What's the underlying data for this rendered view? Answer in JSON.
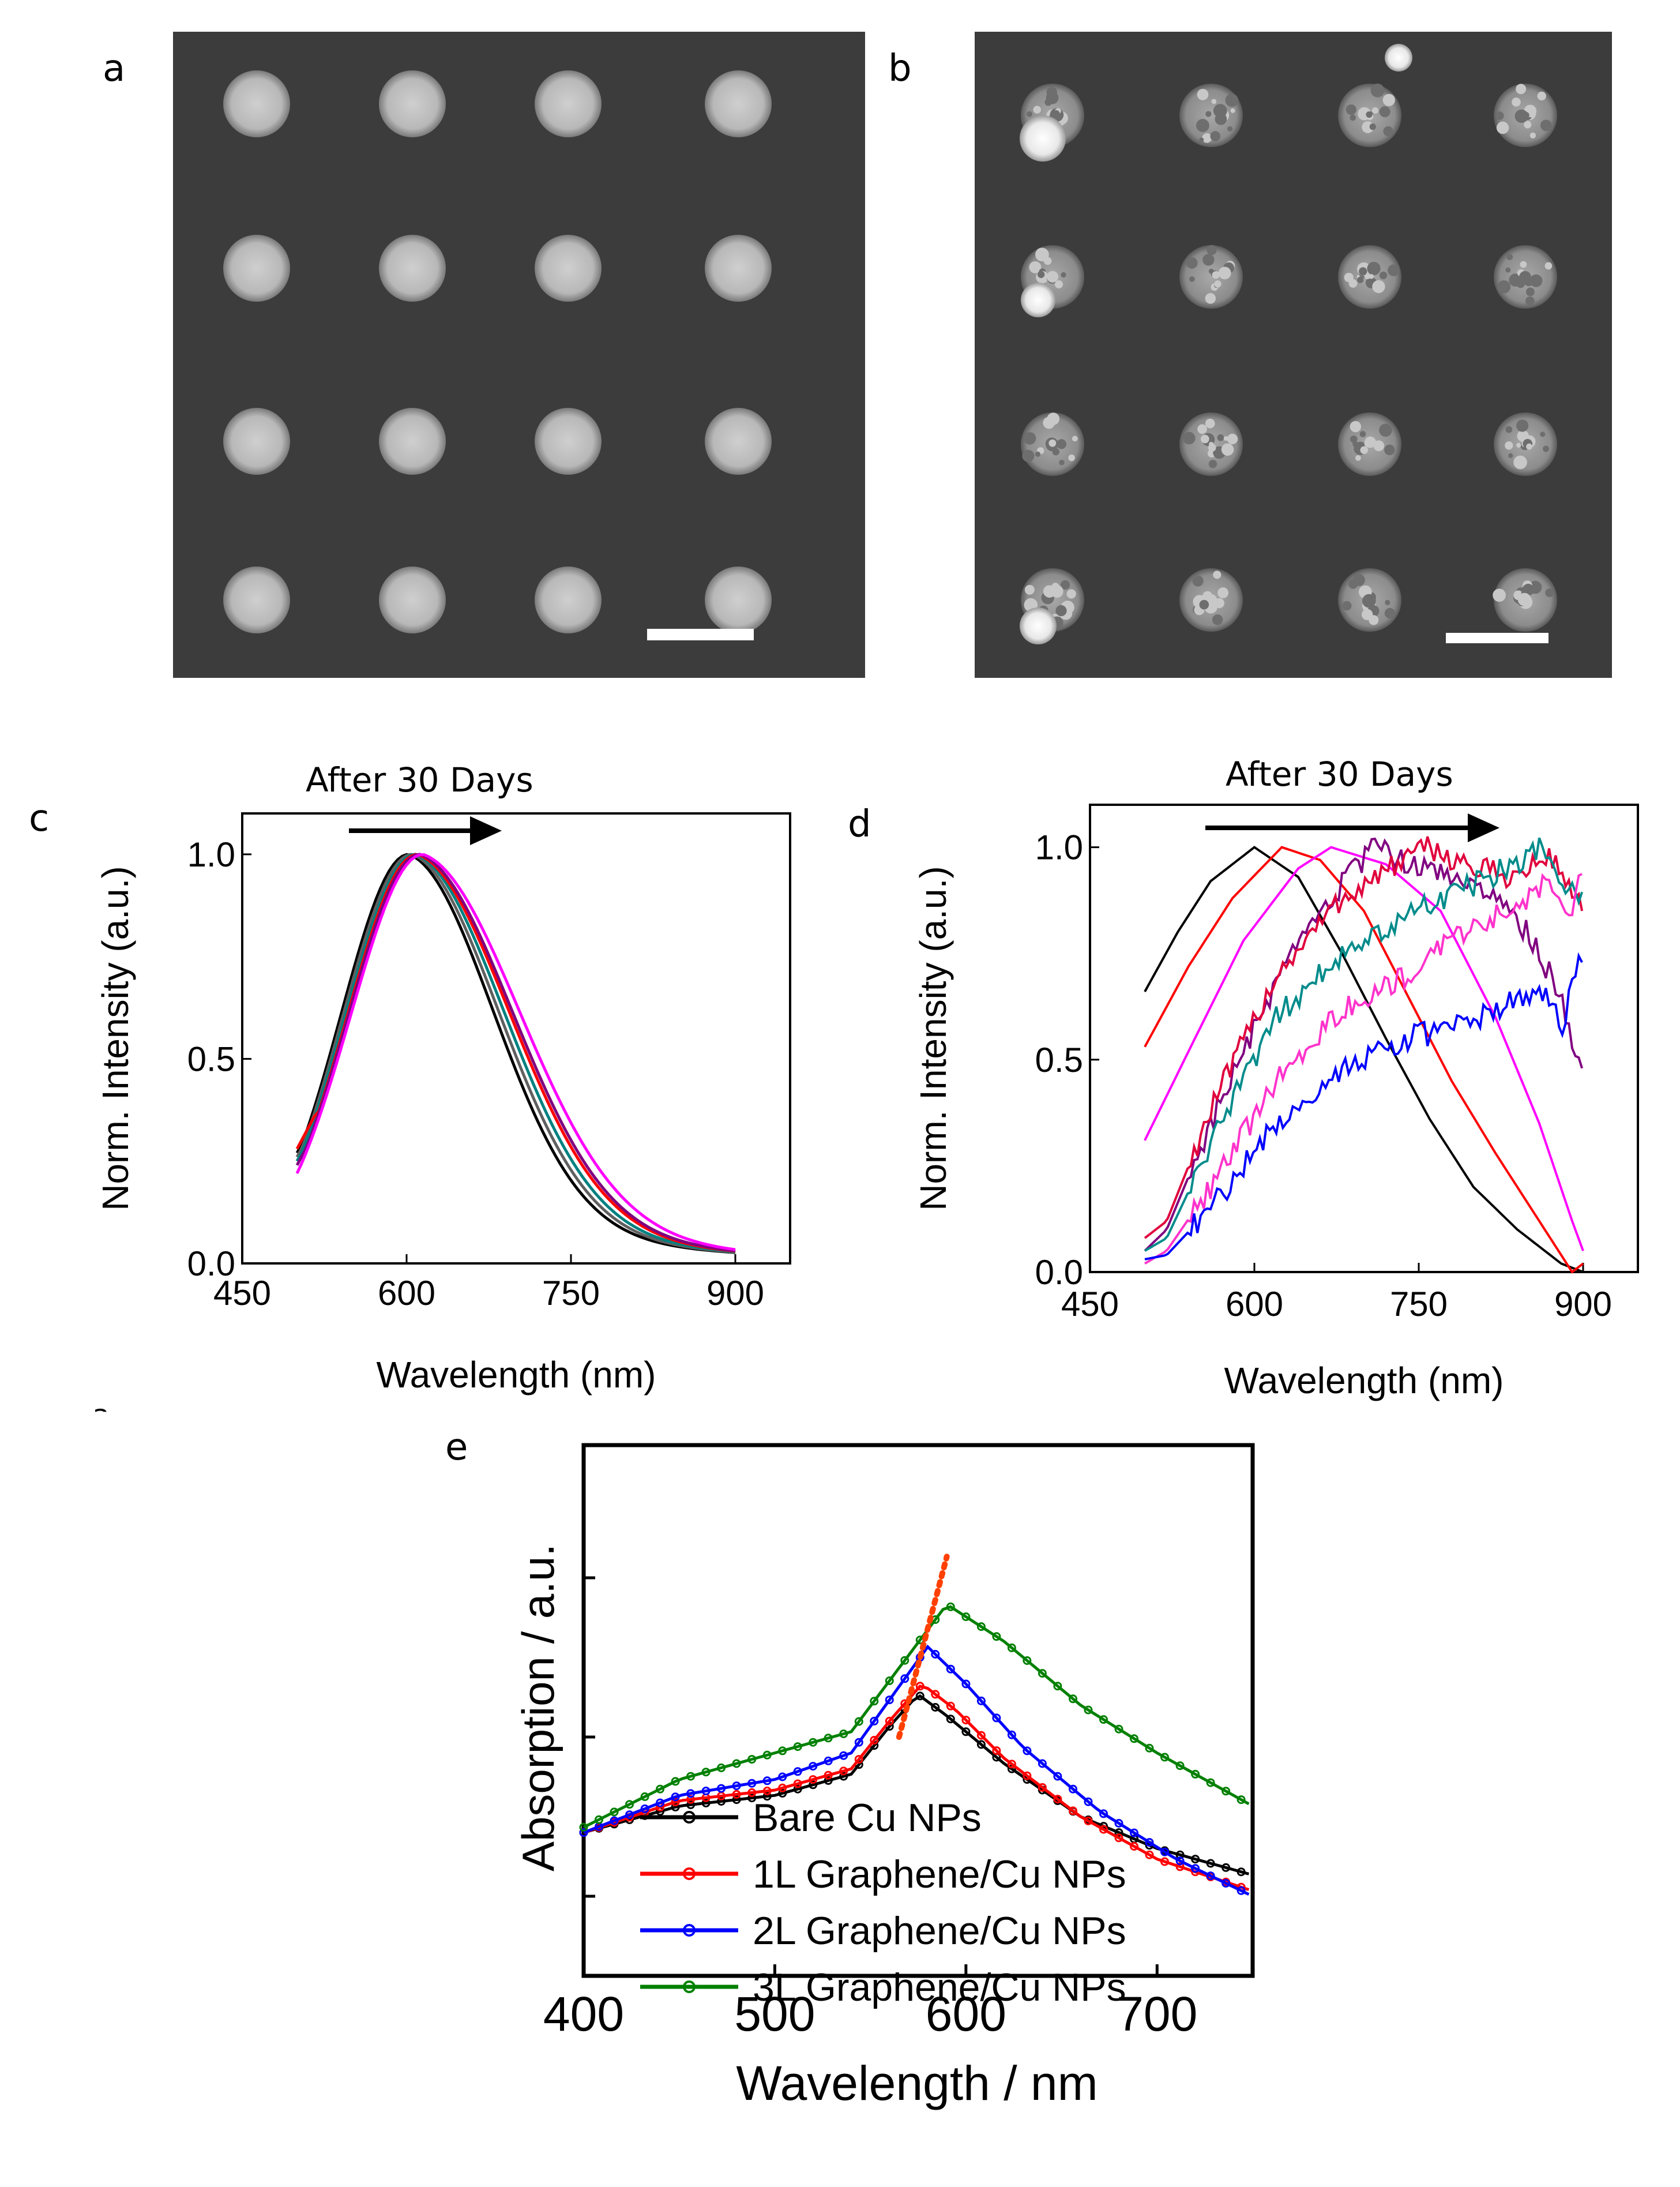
{
  "figure": {
    "panels": {
      "a": {
        "letter": "a"
      },
      "b": {
        "letter": "b"
      },
      "c": {
        "letter": "c",
        "arrow_caption": "After 30 Days"
      },
      "d": {
        "letter": "d",
        "arrow_caption": "After 30 Days"
      },
      "e": {
        "letter": "e"
      }
    },
    "stray_glyph": "a",
    "sem_images": {
      "a": {
        "grid": [
          4,
          4
        ],
        "description_scale_bar": true,
        "particle_style": "smooth"
      },
      "b": {
        "grid": [
          4,
          4
        ],
        "description_scale_bar": true,
        "particle_style": "oxidized-speckled"
      }
    }
  },
  "chart_data": [
    {
      "id": "c",
      "type": "line",
      "xlabel": "Wavelength (nm)",
      "ylabel": "Norm. Intensity (a.u.)",
      "xlim": [
        450,
        950
      ],
      "ylim": [
        0,
        1.1
      ],
      "xticks": [
        450,
        600,
        750,
        900
      ],
      "yticks": [
        0.0,
        0.5,
        1.0
      ],
      "xtick_labels": [
        "450",
        "600",
        "750",
        "900"
      ],
      "ytick_labels": [
        "0.0",
        "0.5",
        "1.0"
      ],
      "x_range": [
        500,
        900
      ],
      "series": [
        {
          "color": "#000000",
          "peak": 602,
          "widthL": 62,
          "widthR": 78,
          "start": 0.27
        },
        {
          "color": "#606060",
          "peak": 605,
          "widthL": 63,
          "widthR": 80,
          "start": 0.26
        },
        {
          "color": "#008080",
          "peak": 608,
          "widthL": 64,
          "widthR": 82,
          "start": 0.25
        },
        {
          "color": "#ff0000",
          "peak": 610,
          "widthL": 64,
          "widthR": 85,
          "start": 0.28
        },
        {
          "color": "#800080",
          "peak": 612,
          "widthL": 65,
          "widthR": 86,
          "start": 0.24
        },
        {
          "color": "#ff00ff",
          "peak": 615,
          "widthL": 66,
          "widthR": 90,
          "start": 0.22
        }
      ]
    },
    {
      "id": "d",
      "type": "line",
      "xlabel": "Wavelength (nm)",
      "ylabel": "Norm. Intensity (a.u.)",
      "xlim": [
        450,
        950
      ],
      "ylim": [
        0,
        1.1
      ],
      "xticks": [
        450,
        600,
        750,
        900
      ],
      "yticks": [
        0.0,
        0.5,
        1.0
      ],
      "xtick_labels": [
        "450",
        "600",
        "750",
        "900"
      ],
      "ytick_labels": [
        "0.0",
        "0.5",
        "1.0"
      ],
      "x_range": [
        500,
        900
      ],
      "series": [
        {
          "color": "#000000",
          "points": [
            [
              500,
              0.66
            ],
            [
              530,
              0.8
            ],
            [
              560,
              0.92
            ],
            [
              600,
              1.0
            ],
            [
              640,
              0.93
            ],
            [
              680,
              0.75
            ],
            [
              720,
              0.55
            ],
            [
              760,
              0.36
            ],
            [
              800,
              0.2
            ],
            [
              840,
              0.1
            ],
            [
              880,
              0.02
            ],
            [
              900,
              0.0
            ]
          ]
        },
        {
          "color": "#ff0000",
          "points": [
            [
              500,
              0.53
            ],
            [
              540,
              0.72
            ],
            [
              580,
              0.88
            ],
            [
              625,
              1.0
            ],
            [
              660,
              0.97
            ],
            [
              700,
              0.85
            ],
            [
              740,
              0.65
            ],
            [
              780,
              0.45
            ],
            [
              820,
              0.28
            ],
            [
              860,
              0.12
            ],
            [
              890,
              0.0
            ],
            [
              900,
              0.02
            ]
          ]
        },
        {
          "color": "#ff00ff",
          "points": [
            [
              500,
              0.31
            ],
            [
              540,
              0.52
            ],
            [
              590,
              0.78
            ],
            [
              640,
              0.95
            ],
            [
              670,
              1.0
            ],
            [
              720,
              0.96
            ],
            [
              770,
              0.85
            ],
            [
              820,
              0.6
            ],
            [
              860,
              0.35
            ],
            [
              890,
              0.12
            ],
            [
              900,
              0.05
            ]
          ]
        },
        {
          "color": "#800080",
          "points": [
            [
              500,
              0.05
            ],
            [
              520,
              0.1
            ],
            [
              560,
              0.35
            ],
            [
              620,
              0.68
            ],
            [
              670,
              0.88
            ],
            [
              710,
              1.0
            ],
            [
              750,
              0.95
            ],
            [
              800,
              0.92
            ],
            [
              850,
              0.8
            ],
            [
              880,
              0.65
            ],
            [
              890,
              0.52
            ],
            [
              900,
              0.5
            ]
          ]
        },
        {
          "color": "#e0003c",
          "points": [
            [
              500,
              0.08
            ],
            [
              520,
              0.12
            ],
            [
              560,
              0.38
            ],
            [
              620,
              0.7
            ],
            [
              680,
              0.88
            ],
            [
              730,
              0.96
            ],
            [
              760,
              1.0
            ],
            [
              800,
              0.95
            ],
            [
              840,
              0.93
            ],
            [
              870,
              0.98
            ],
            [
              890,
              0.9
            ],
            [
              900,
              0.85
            ]
          ]
        },
        {
          "color": "#008b8b",
          "points": [
            [
              500,
              0.05
            ],
            [
              520,
              0.08
            ],
            [
              560,
              0.3
            ],
            [
              620,
              0.6
            ],
            [
              680,
              0.75
            ],
            [
              740,
              0.84
            ],
            [
              790,
              0.9
            ],
            [
              830,
              0.95
            ],
            [
              860,
              1.0
            ],
            [
              880,
              0.92
            ],
            [
              900,
              0.88
            ]
          ]
        },
        {
          "color": "#ff33cc",
          "points": [
            [
              500,
              0.02
            ],
            [
              520,
              0.05
            ],
            [
              560,
              0.2
            ],
            [
              620,
              0.45
            ],
            [
              680,
              0.62
            ],
            [
              740,
              0.7
            ],
            [
              790,
              0.8
            ],
            [
              840,
              0.86
            ],
            [
              870,
              0.92
            ],
            [
              890,
              0.85
            ],
            [
              900,
              0.98
            ]
          ]
        },
        {
          "color": "#0000ff",
          "points": [
            [
              500,
              0.03
            ],
            [
              520,
              0.04
            ],
            [
              560,
              0.15
            ],
            [
              620,
              0.35
            ],
            [
              680,
              0.48
            ],
            [
              740,
              0.55
            ],
            [
              790,
              0.58
            ],
            [
              830,
              0.63
            ],
            [
              860,
              0.67
            ],
            [
              880,
              0.58
            ],
            [
              900,
              0.75
            ]
          ]
        }
      ],
      "noise_from_series_index": 3
    },
    {
      "id": "e",
      "type": "line",
      "xlabel": "Wavelength / nm",
      "ylabel": "Absorption / a.u.",
      "xlim": [
        400,
        750
      ],
      "xticks": [
        400,
        500,
        600,
        700
      ],
      "xtick_labels": [
        "400",
        "500",
        "600",
        "700"
      ],
      "ylim": [
        0,
        1.0
      ],
      "legend_placement": "lower-left",
      "series": [
        {
          "name": "Bare Cu NPs",
          "color": "#000000",
          "points": [
            [
              400,
              0.27
            ],
            [
              450,
              0.32
            ],
            [
              500,
              0.34
            ],
            [
              540,
              0.38
            ],
            [
              560,
              0.47
            ],
            [
              575,
              0.53
            ],
            [
              590,
              0.49
            ],
            [
              620,
              0.4
            ],
            [
              660,
              0.3
            ],
            [
              700,
              0.24
            ],
            [
              750,
              0.19
            ]
          ]
        },
        {
          "name": "1L Graphene/Cu NPs",
          "color": "#ff0000",
          "points": [
            [
              400,
              0.27
            ],
            [
              450,
              0.33
            ],
            [
              500,
              0.35
            ],
            [
              540,
              0.39
            ],
            [
              560,
              0.48
            ],
            [
              577,
              0.55
            ],
            [
              595,
              0.5
            ],
            [
              620,
              0.41
            ],
            [
              660,
              0.3
            ],
            [
              700,
              0.22
            ],
            [
              750,
              0.16
            ]
          ]
        },
        {
          "name": "2L Graphene/Cu NPs",
          "color": "#0000ff",
          "points": [
            [
              400,
              0.27
            ],
            [
              450,
              0.34
            ],
            [
              500,
              0.37
            ],
            [
              540,
              0.42
            ],
            [
              560,
              0.52
            ],
            [
              580,
              0.62
            ],
            [
              600,
              0.55
            ],
            [
              630,
              0.43
            ],
            [
              670,
              0.31
            ],
            [
              710,
              0.22
            ],
            [
              750,
              0.15
            ]
          ]
        },
        {
          "name": "3L Graphene/Cu NPs",
          "color": "#008000",
          "points": [
            [
              400,
              0.28
            ],
            [
              450,
              0.37
            ],
            [
              500,
              0.42
            ],
            [
              540,
              0.46
            ],
            [
              565,
              0.58
            ],
            [
              590,
              0.7
            ],
            [
              620,
              0.63
            ],
            [
              660,
              0.51
            ],
            [
              700,
              0.42
            ],
            [
              730,
              0.36
            ],
            [
              750,
              0.32
            ]
          ]
        }
      ],
      "dotted_trend_line": {
        "color": "#ff4000",
        "points": [
          [
            565,
            0.45
          ],
          [
            590,
            0.79
          ]
        ]
      }
    }
  ]
}
